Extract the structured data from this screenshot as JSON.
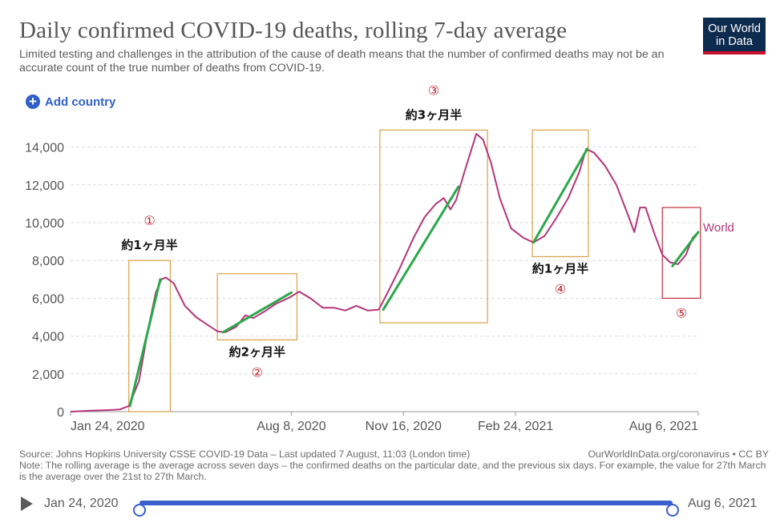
{
  "header": {
    "title": "Daily confirmed COVID-19 deaths, rolling 7-day average",
    "subtitle": "Limited testing and challenges in the attribution of the cause of death means that the number of confirmed deaths may not be an accurate count of the true number of deaths from COVID-19.",
    "logo_line1": "Our World",
    "logo_line2": "in Data"
  },
  "controls": {
    "add_country_label": "Add country",
    "add_icon": "plus-circle-icon"
  },
  "chart_data": {
    "type": "line",
    "title": "Daily confirmed COVID-19 deaths, rolling 7-day average",
    "xlabel": "",
    "ylabel": "",
    "ylim": [
      0,
      15000
    ],
    "xlim": [
      "2020-01-24",
      "2021-08-06"
    ],
    "y_ticks": [
      0,
      2000,
      4000,
      6000,
      8000,
      10000,
      12000,
      14000
    ],
    "y_tick_labels": [
      "0",
      "2,000",
      "4,000",
      "6,000",
      "8,000",
      "10,000",
      "12,000",
      "14,000"
    ],
    "x_ticks": [
      "2020-01-24",
      "2020-08-08",
      "2020-11-16",
      "2021-02-24",
      "2021-08-06"
    ],
    "x_tick_labels": [
      "Jan 24, 2020",
      "Aug 8, 2020",
      "Nov 16, 2020",
      "Feb 24, 2021",
      "Aug 6, 2021"
    ],
    "grid": true,
    "series": [
      {
        "name": "World",
        "color": "#b5357a",
        "points": [
          [
            "2020-01-24",
            0
          ],
          [
            "2020-02-10",
            50
          ],
          [
            "2020-02-25",
            80
          ],
          [
            "2020-03-08",
            120
          ],
          [
            "2020-03-16",
            300
          ],
          [
            "2020-03-25",
            1600
          ],
          [
            "2020-04-02",
            4300
          ],
          [
            "2020-04-09",
            6300
          ],
          [
            "2020-04-14",
            7000
          ],
          [
            "2020-04-18",
            7100
          ],
          [
            "2020-04-25",
            6800
          ],
          [
            "2020-05-05",
            5600
          ],
          [
            "2020-05-15",
            5000
          ],
          [
            "2020-05-25",
            4600
          ],
          [
            "2020-06-03",
            4250
          ],
          [
            "2020-06-10",
            4200
          ],
          [
            "2020-06-20",
            4500
          ],
          [
            "2020-06-28",
            5100
          ],
          [
            "2020-07-05",
            4950
          ],
          [
            "2020-07-15",
            5300
          ],
          [
            "2020-07-25",
            5700
          ],
          [
            "2020-08-05",
            6000
          ],
          [
            "2020-08-15",
            6350
          ],
          [
            "2020-08-25",
            6000
          ],
          [
            "2020-09-05",
            5500
          ],
          [
            "2020-09-15",
            5500
          ],
          [
            "2020-09-25",
            5350
          ],
          [
            "2020-10-05",
            5600
          ],
          [
            "2020-10-15",
            5350
          ],
          [
            "2020-10-25",
            5400
          ],
          [
            "2020-11-01",
            6200
          ],
          [
            "2020-11-12",
            7500
          ],
          [
            "2020-11-25",
            9200
          ],
          [
            "2020-12-05",
            10300
          ],
          [
            "2020-12-15",
            11000
          ],
          [
            "2020-12-22",
            11300
          ],
          [
            "2020-12-28",
            10700
          ],
          [
            "2021-01-02",
            11200
          ],
          [
            "2021-01-10",
            12800
          ],
          [
            "2021-01-20",
            14700
          ],
          [
            "2021-01-26",
            14400
          ],
          [
            "2021-02-02",
            13200
          ],
          [
            "2021-02-10",
            11300
          ],
          [
            "2021-02-20",
            9700
          ],
          [
            "2021-03-03",
            9200
          ],
          [
            "2021-03-12",
            8950
          ],
          [
            "2021-03-22",
            9300
          ],
          [
            "2021-04-02",
            10300
          ],
          [
            "2021-04-12",
            11300
          ],
          [
            "2021-04-22",
            12700
          ],
          [
            "2021-04-28",
            13900
          ],
          [
            "2021-05-05",
            13700
          ],
          [
            "2021-05-15",
            13000
          ],
          [
            "2021-05-25",
            12000
          ],
          [
            "2021-06-05",
            10300
          ],
          [
            "2021-06-10",
            9500
          ],
          [
            "2021-06-15",
            10800
          ],
          [
            "2021-06-20",
            10800
          ],
          [
            "2021-06-28",
            9400
          ],
          [
            "2021-07-05",
            8300
          ],
          [
            "2021-07-12",
            7900
          ],
          [
            "2021-07-19",
            7800
          ],
          [
            "2021-07-26",
            8300
          ],
          [
            "2021-08-01",
            9200
          ],
          [
            "2021-08-06",
            9500
          ]
        ]
      }
    ],
    "trend_lines": [
      {
        "from": [
          "2020-03-17",
          300
        ],
        "to": [
          "2020-04-13",
          7000
        ]
      },
      {
        "from": [
          "2020-06-08",
          4200
        ],
        "to": [
          "2020-08-08",
          6300
        ]
      },
      {
        "from": [
          "2020-10-29",
          5400
        ],
        "to": [
          "2021-01-04",
          11900
        ]
      },
      {
        "from": [
          "2021-03-12",
          8950
        ],
        "to": [
          "2021-04-29",
          13900
        ]
      },
      {
        "from": [
          "2021-07-14",
          7700
        ],
        "to": [
          "2021-08-06",
          9500
        ]
      }
    ],
    "annotations": [
      {
        "number": "①",
        "text": "約1ヶ月半",
        "box": {
          "x": [
            "2020-03-16",
            "2020-04-22"
          ],
          "y": [
            0,
            8000
          ]
        }
      },
      {
        "number": "②",
        "text": "約2ヶ月半",
        "box": {
          "x": [
            "2020-06-03",
            "2020-08-13"
          ],
          "y": [
            3800,
            7300
          ]
        }
      },
      {
        "number": "③",
        "text": "約3ヶ月半",
        "box": {
          "x": [
            "2020-10-26",
            "2021-01-30"
          ],
          "y": [
            4700,
            14900
          ]
        }
      },
      {
        "number": "④",
        "text": "約1ヶ月半",
        "box": {
          "x": [
            "2021-03-11",
            "2021-04-30"
          ],
          "y": [
            8200,
            14900
          ]
        }
      },
      {
        "number": "⑤",
        "text": "",
        "box": {
          "x": [
            "2021-07-05",
            "2021-08-08"
          ],
          "y": [
            6000,
            10800
          ]
        }
      }
    ]
  },
  "footer": {
    "source": "Source: Johns Hopkins University CSSE COVID-19 Data – Last updated 7 August, 11:03 (London time)",
    "attribution": "OurWorldInData.org/coronavirus • CC BY",
    "note": "Note: The rolling average is the average across seven days – the confirmed deaths on the particular date, and the previous six days. For example, the value for 27th March is the average over the 21st to 27th March."
  },
  "timeline": {
    "start_label": "Jan 24, 2020",
    "end_label": "Aug 6, 2021",
    "play_icon": "play-icon",
    "start_fraction": 0,
    "end_fraction": 1
  }
}
